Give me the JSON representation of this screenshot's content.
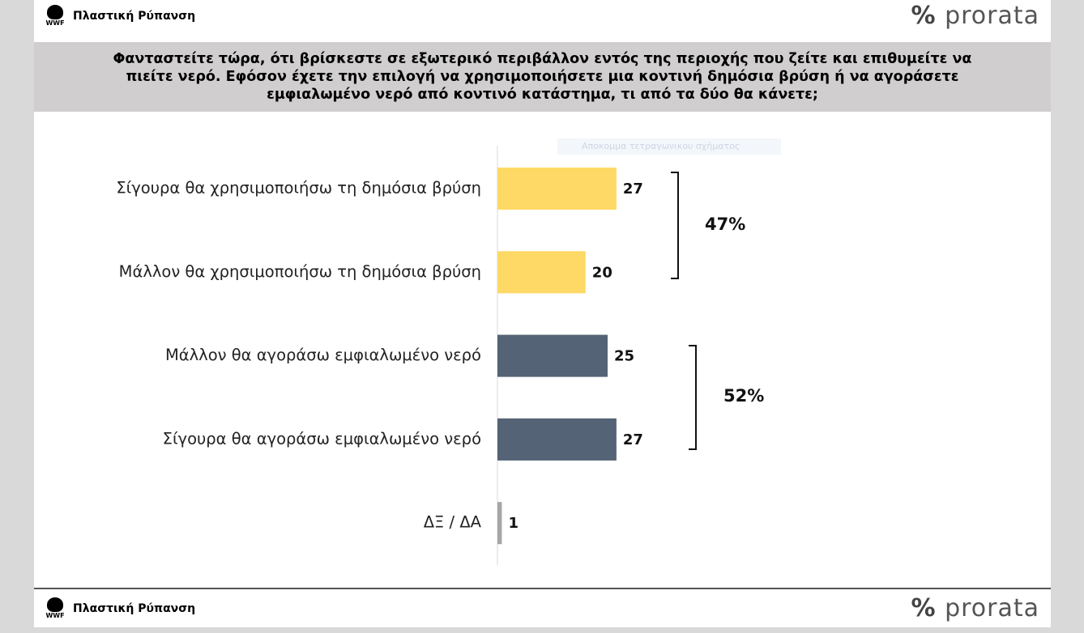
{
  "header": {
    "title": "Πλαστική Ρύπανση",
    "logo": "WWF",
    "brand": "prorata"
  },
  "footer": {
    "title": "Πλαστική Ρύπανση",
    "logo": "WWF",
    "brand": "prorata"
  },
  "tooltip": "Αποκομμα τετραγωνικου σχήματος",
  "chart_data": {
    "type": "bar",
    "orientation": "horizontal",
    "title": "Φανταστείτε τώρα, ότι βρίσκεστε σε εξωτερικό περιβάλλον εντός της περιοχής που ζείτε και επιθυμείτε να πιείτε νερό. Εφόσον έχετε την επιλογή να χρησιμοποιήσετε μια κοντινή δημόσια βρύση ή να αγοράσετε εμφιαλωμένο νερό από κοντινό κατάστημα, τι από τα δύο θα κάνετε;",
    "categories": [
      "Σίγουρα θα χρησιμοποιήσω τη δημόσια βρύση",
      "Μάλλον θα χρησιμοποιήσω τη δημόσια βρύση",
      "Μάλλον θα αγοράσω εμφιαλωμένο νερό",
      "Σίγουρα θα αγοράσω εμφιαλωμένο νερό",
      "ΔΞ / ΔΑ"
    ],
    "values": [
      27,
      20,
      25,
      27,
      1
    ],
    "colors": [
      "#ffd966",
      "#ffd966",
      "#546375",
      "#546375",
      "#a6a6a6"
    ],
    "annotations": [
      "47%",
      "52%"
    ]
  }
}
